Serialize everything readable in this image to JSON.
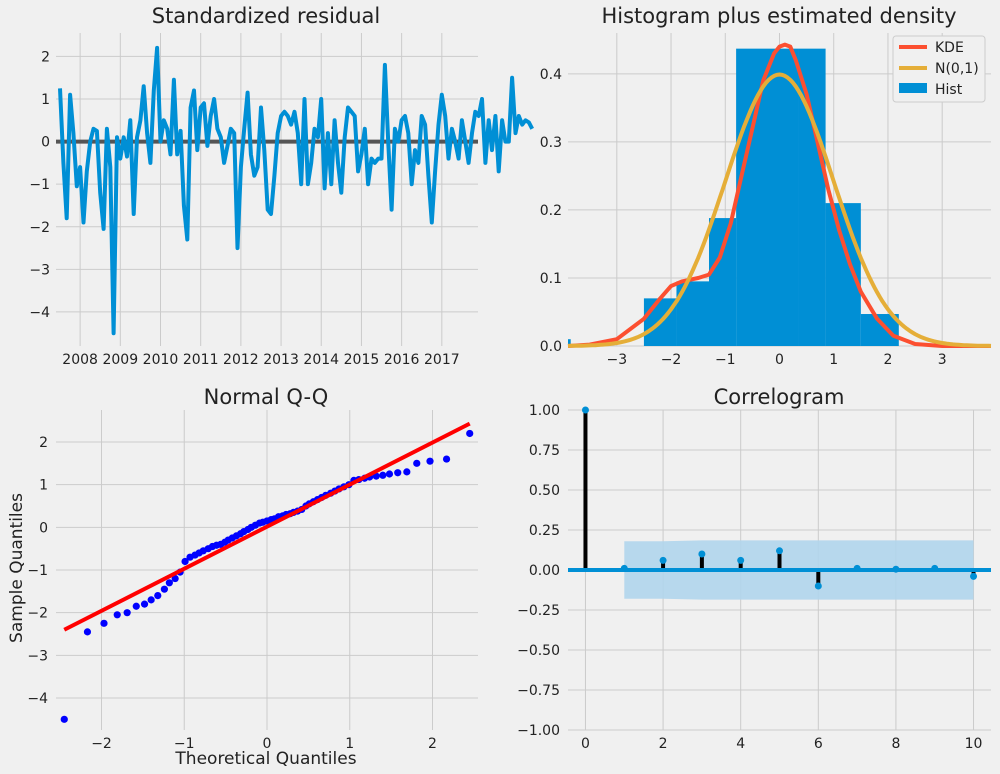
{
  "colors": {
    "background": "#f0f0f0",
    "grid": "#cbcbcb",
    "residual_line": "#008fd5",
    "zero_line": "#555555",
    "kde": "#fc4f30",
    "normal": "#e5ae38",
    "hist": "#008fd5",
    "qq_points": "#0000ff",
    "qq_line": "#ff0000",
    "stem": "#000000",
    "conf_band": "#b0d5ec"
  },
  "chart_data": [
    {
      "type": "line",
      "title": "Standardized residual",
      "xlabel": "",
      "ylabel": "",
      "xlim": [
        2007.4,
        2017.9
      ],
      "ylim": [
        -4.8,
        2.55
      ],
      "xticks": [
        2008,
        2009,
        2010,
        2011,
        2012,
        2013,
        2014,
        2015,
        2016,
        2017
      ],
      "xtick_labels": [
        "2008",
        "2009",
        "2010",
        "2011",
        "2012",
        "2013",
        "2014",
        "2015",
        "2016",
        "2017"
      ],
      "yticks": [
        -4,
        -3,
        -2,
        -1,
        0,
        1,
        2
      ],
      "ytick_labels": [
        "−4",
        "−3",
        "−2",
        "−1",
        "0",
        "1",
        "2"
      ],
      "zero_line": 0,
      "grid": true,
      "series": [
        {
          "x_start": 2007.5,
          "x_step": 0.08333,
          "values": [
            1.25,
            -0.5,
            -1.8,
            1.1,
            0.2,
            -1.05,
            -0.6,
            -1.9,
            -0.7,
            0.0,
            0.3,
            0.25,
            -1.2,
            -2.05,
            0.3,
            -0.6,
            -4.5,
            0.1,
            -0.4,
            0.1,
            -0.35,
            0.5,
            -1.7,
            0.1,
            0.5,
            1.3,
            0.2,
            -0.5,
            1.2,
            2.2,
            0.0,
            0.5,
            0.3,
            -0.3,
            1.45,
            -0.3,
            0.25,
            -1.5,
            -2.3,
            0.8,
            1.2,
            -0.2,
            0.8,
            0.9,
            -0.1,
            0.6,
            1.0,
            0.3,
            0.1,
            -0.5,
            -0.1,
            0.3,
            0.2,
            -2.5,
            -0.6,
            0.3,
            1.15,
            -0.3,
            -0.8,
            -0.6,
            0.8,
            -0.2,
            -1.6,
            -1.7,
            -0.8,
            0.2,
            0.6,
            0.7,
            0.6,
            0.4,
            0.7,
            0.2,
            -1.0,
            1.0,
            -1.0,
            -0.5,
            0.3,
            0.1,
            1.0,
            -1.1,
            0.2,
            -1.0,
            0.5,
            -0.5,
            -1.2,
            0.1,
            0.8,
            0.7,
            0.6,
            -0.7,
            -0.3,
            0.3,
            -1.0,
            -0.4,
            -0.5,
            -0.4,
            -0.4,
            1.8,
            0.0,
            -1.6,
            0.3,
            0.0,
            0.5,
            0.6,
            0.2,
            -1.0,
            -0.2,
            -0.5,
            0.6,
            0.4,
            -0.8,
            -1.9,
            -0.7,
            0.4,
            1.1,
            0.6,
            -0.4,
            0.3,
            0.0,
            -0.4,
            0.5,
            0.0,
            -0.5,
            0.2,
            0.7,
            0.6,
            1.0,
            -0.5,
            0.5,
            -0.2,
            0.6,
            -0.7,
            0.5,
            0.0,
            0.0,
            1.5,
            0.2,
            0.6,
            0.4,
            0.5,
            0.45,
            0.3
          ]
        }
      ]
    },
    {
      "type": "bar",
      "title": "Histogram plus estimated density",
      "xlabel": "",
      "ylabel": "",
      "xlim": [
        -3.9,
        3.9
      ],
      "ylim": [
        0,
        0.46
      ],
      "xticks": [
        -3,
        -2,
        -1,
        0,
        1,
        2,
        3
      ],
      "xtick_labels": [
        "−3",
        "−2",
        "−1",
        "0",
        "1",
        "2",
        "3"
      ],
      "yticks": [
        0.0,
        0.1,
        0.2,
        0.3,
        0.4
      ],
      "ytick_labels": [
        "0.0",
        "0.1",
        "0.2",
        "0.3",
        "0.4"
      ],
      "legend": {
        "position": "top-right",
        "entries": [
          {
            "label": "KDE",
            "kind": "line",
            "color": "#fc4f30"
          },
          {
            "label": "N(0,1)",
            "kind": "line",
            "color": "#e5ae38"
          },
          {
            "label": "Hist",
            "kind": "patch",
            "color": "#008fd5"
          }
        ]
      },
      "grid": true,
      "hist_bins": [
        {
          "x0": -3.9,
          "x1": -3.85,
          "density": 0.01
        },
        {
          "x0": -2.5,
          "x1": -1.9,
          "density": 0.07
        },
        {
          "x0": -1.9,
          "x1": -1.3,
          "density": 0.095
        },
        {
          "x0": -1.3,
          "x1": -0.8,
          "density": 0.188
        },
        {
          "x0": -0.8,
          "x1": 0.35,
          "density": 0.437
        },
        {
          "x0": 0.35,
          "x1": 0.85,
          "density": 0.437
        },
        {
          "x0": 0.85,
          "x1": 1.5,
          "density": 0.21
        },
        {
          "x0": 1.5,
          "x1": 2.2,
          "density": 0.047
        }
      ],
      "series": [
        {
          "name": "KDE",
          "x": [
            -3.9,
            -3.5,
            -3.0,
            -2.5,
            -2.2,
            -2.0,
            -1.8,
            -1.5,
            -1.3,
            -1.1,
            -0.9,
            -0.7,
            -0.5,
            -0.3,
            -0.1,
            0.0,
            0.1,
            0.2,
            0.3,
            0.5,
            0.7,
            0.9,
            1.1,
            1.3,
            1.5,
            1.8,
            2.1,
            2.5,
            3.0,
            3.5,
            3.9
          ],
          "y": [
            0.0,
            0.002,
            0.01,
            0.04,
            0.07,
            0.088,
            0.095,
            0.1,
            0.105,
            0.13,
            0.18,
            0.25,
            0.32,
            0.39,
            0.43,
            0.44,
            0.443,
            0.44,
            0.42,
            0.37,
            0.3,
            0.23,
            0.17,
            0.12,
            0.08,
            0.04,
            0.015,
            0.003,
            0.0,
            0.0,
            0.0
          ]
        },
        {
          "name": "N(0,1)",
          "function": "normal_pdf",
          "mean": 0,
          "sd": 1
        }
      ]
    },
    {
      "type": "scatter",
      "title": "Normal Q-Q",
      "xlabel": "Theoretical Quantiles",
      "ylabel": "Sample Quantiles",
      "xlim": [
        -2.55,
        2.55
      ],
      "ylim": [
        -4.75,
        2.75
      ],
      "xticks": [
        -2,
        -1,
        0,
        1,
        2
      ],
      "xtick_labels": [
        "−2",
        "−1",
        "0",
        "1",
        "2"
      ],
      "yticks": [
        -4,
        -3,
        -2,
        -1,
        0,
        1,
        2
      ],
      "ytick_labels": [
        "−4",
        "−3",
        "−2",
        "−1",
        "0",
        "1",
        "2"
      ],
      "grid": true,
      "points": {
        "x": [
          -2.45,
          -2.17,
          -1.97,
          -1.81,
          -1.69,
          -1.58,
          -1.48,
          -1.4,
          -1.32,
          -1.24,
          -1.18,
          -1.11,
          -1.05,
          -0.99,
          -0.93,
          -0.87,
          -0.82,
          -0.77,
          -0.71,
          -0.66,
          -0.61,
          -0.56,
          -0.51,
          -0.47,
          -0.42,
          -0.37,
          -0.32,
          -0.28,
          -0.23,
          -0.19,
          -0.14,
          -0.09,
          -0.05,
          0.0,
          0.05,
          0.09,
          0.14,
          0.19,
          0.23,
          0.28,
          0.32,
          0.37,
          0.42,
          0.47,
          0.51,
          0.56,
          0.61,
          0.66,
          0.71,
          0.77,
          0.82,
          0.87,
          0.93,
          0.99,
          1.05,
          1.11,
          1.18,
          1.24,
          1.32,
          1.4,
          1.48,
          1.58,
          1.69,
          1.81,
          1.97,
          2.17,
          2.45
        ],
        "y": [
          -4.5,
          -2.45,
          -2.25,
          -2.05,
          -2.0,
          -1.85,
          -1.8,
          -1.7,
          -1.6,
          -1.45,
          -1.3,
          -1.2,
          -1.05,
          -0.8,
          -0.7,
          -0.65,
          -0.6,
          -0.55,
          -0.5,
          -0.45,
          -0.42,
          -0.4,
          -0.35,
          -0.3,
          -0.25,
          -0.2,
          -0.15,
          -0.1,
          -0.05,
          0.0,
          0.05,
          0.1,
          0.12,
          0.15,
          0.18,
          0.2,
          0.25,
          0.27,
          0.3,
          0.32,
          0.35,
          0.38,
          0.42,
          0.5,
          0.55,
          0.6,
          0.65,
          0.7,
          0.75,
          0.8,
          0.85,
          0.9,
          0.95,
          1.0,
          1.1,
          1.12,
          1.15,
          1.18,
          1.2,
          1.22,
          1.25,
          1.28,
          1.3,
          1.5,
          1.55,
          1.6,
          2.2
        ]
      },
      "reference_line": {
        "x": [
          -2.45,
          2.45
        ],
        "y": [
          -2.4,
          2.43
        ]
      }
    },
    {
      "type": "bar",
      "title": "Correlogram",
      "xlabel": "",
      "ylabel": "",
      "xlim": [
        -0.45,
        10.45
      ],
      "ylim": [
        -1.0,
        1.0
      ],
      "xticks": [
        0,
        2,
        4,
        6,
        8,
        10
      ],
      "xtick_labels": [
        "0",
        "2",
        "4",
        "6",
        "8",
        "10"
      ],
      "yticks": [
        -1.0,
        -0.75,
        -0.5,
        -0.25,
        0.0,
        0.25,
        0.5,
        0.75,
        1.0
      ],
      "ytick_labels": [
        "−1.00",
        "−0.75",
        "−0.50",
        "−0.25",
        "0.00",
        "0.25",
        "0.50",
        "0.75",
        "1.00"
      ],
      "grid": true,
      "lags": [
        0,
        1,
        2,
        3,
        4,
        5,
        6,
        7,
        8,
        9,
        10
      ],
      "values": [
        1.0,
        0.01,
        0.06,
        0.1,
        0.06,
        0.12,
        -0.1,
        0.01,
        0.005,
        0.01,
        -0.04
      ],
      "confidence_band": {
        "x_start": 1,
        "x_end": 10,
        "upper": [
          0.18,
          0.18,
          0.185,
          0.185,
          0.185,
          0.185,
          0.185,
          0.185,
          0.185,
          0.185
        ],
        "lower": [
          -0.18,
          -0.18,
          -0.185,
          -0.185,
          -0.185,
          -0.185,
          -0.185,
          -0.185,
          -0.185,
          -0.185
        ]
      }
    }
  ]
}
